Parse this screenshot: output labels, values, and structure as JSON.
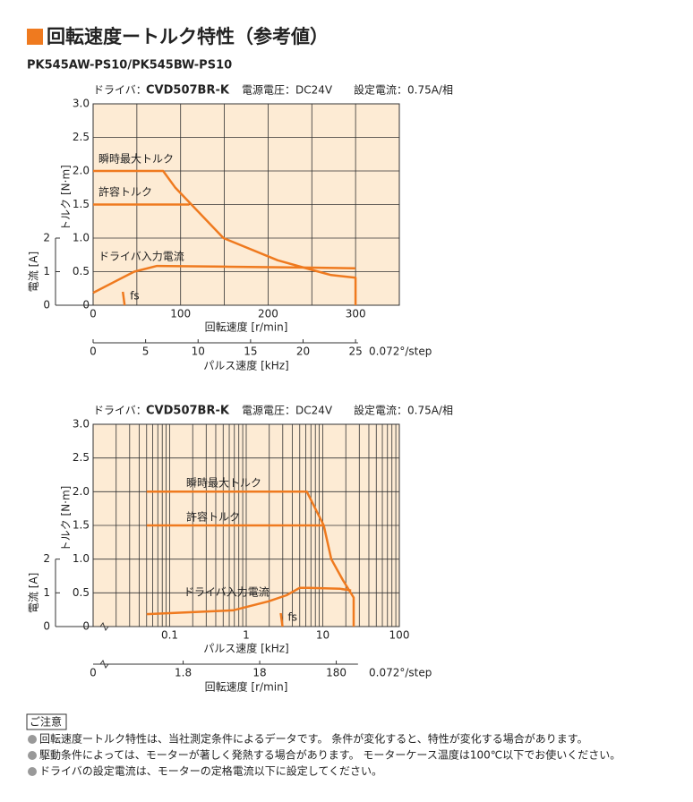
{
  "title": "回転速度ートルク特性（参考値）",
  "subtitle": "PK545AW-PS10/PK545BW-PS10",
  "chart_data": [
    {
      "type": "line",
      "driver_label": "ドライバ：",
      "driver": "CVD507BR-K",
      "voltage": "電源電圧：DC24V",
      "current_setting": "設定電流：0.75A/相",
      "ylabel": "トルク [N·m]",
      "y2label": "電流 [A]",
      "xlabel": "回転速度 [r/min]",
      "x2label": "パルス速度 [kHz]",
      "x2unit": "0.072°/step",
      "xscale": "linear",
      "xlim": [
        0,
        350
      ],
      "xticks": [
        0,
        100,
        200,
        300
      ],
      "xgrid": [
        0,
        50,
        100,
        150,
        200,
        250,
        300,
        350
      ],
      "x2scale": "linear",
      "x2lim": [
        0,
        29.17
      ],
      "x2ticks": [
        0,
        5,
        10,
        15,
        20,
        25
      ],
      "ylim": [
        0,
        3
      ],
      "yticks": [
        0,
        0.5,
        {
          "value": 1,
          "label": "1.0"
        },
        1.5,
        {
          "value": 2,
          "label": "2.0"
        },
        2.5,
        {
          "value": 3,
          "label": "3.0"
        }
      ],
      "y2lim": [
        0,
        6
      ],
      "y2ticks": [
        0,
        1,
        2
      ],
      "grid": true,
      "background": "#fdebd4",
      "series": [
        {
          "name": "瞬時最大トルク",
          "color": "#ef7a1f",
          "x": [
            0,
            80,
            94,
            149,
            211,
            252,
            272,
            300,
            300
          ],
          "values": [
            2.0,
            2.0,
            1.75,
            1.0,
            0.67,
            0.52,
            0.45,
            0.41,
            0
          ]
        },
        {
          "name": "許容トルク",
          "color": "#ef7a1f",
          "x": [
            0,
            110
          ],
          "values": [
            1.5,
            1.5
          ]
        },
        {
          "name": "ドライバ入力電流",
          "color": "#ef7a1f",
          "axis": "y2",
          "x": [
            0,
            47,
            73,
            150,
            250,
            300
          ],
          "values": [
            0.37,
            1.0,
            1.17,
            1.15,
            1.12,
            1.1
          ]
        }
      ],
      "fs": {
        "label": "fs",
        "x": 35
      }
    },
    {
      "type": "line",
      "driver_label": "ドライバ：",
      "driver": "CVD507BR-K",
      "voltage": "電源電圧：DC24V",
      "current_setting": "設定電流：0.75A/相",
      "ylabel": "トルク [N·m]",
      "y2label": "電流 [A]",
      "xlabel": "パルス速度 [kHz]",
      "x2label": "回転速度 [r/min]",
      "x2unit": "0.072°/step",
      "x2origin": "0",
      "xscale": "log",
      "xlim": [
        0.01,
        100
      ],
      "xticks": [
        0.1,
        1,
        10,
        100
      ],
      "xgrid": [
        0.02,
        0.03,
        0.04,
        0.05,
        0.06,
        0.07,
        0.08,
        0.09,
        0.1,
        0.2,
        0.3,
        0.4,
        0.5,
        0.6,
        0.7,
        0.8,
        0.9,
        1,
        2,
        3,
        4,
        5,
        6,
        7,
        8,
        9,
        10,
        20,
        30,
        40,
        50,
        60,
        70,
        80,
        90,
        100
      ],
      "x2scale": "log",
      "x2lim": [
        0.12,
        1200
      ],
      "x2ticks": [
        1.8,
        18,
        180
      ],
      "ylim": [
        0,
        3
      ],
      "yticks": [
        0,
        0.5,
        {
          "value": 1,
          "label": "1.0"
        },
        1.5,
        {
          "value": 2,
          "label": "2.0"
        },
        2.5,
        {
          "value": 3,
          "label": "3.0"
        }
      ],
      "y2lim": [
        0,
        6
      ],
      "y2ticks": [
        0,
        1,
        2
      ],
      "grid": true,
      "background": "#fdebd4",
      "series": [
        {
          "name": "瞬時最大トルク",
          "color": "#ef7a1f",
          "x": [
            0.05,
            6.2,
            10.3,
            12.9,
            18.3,
            25.3,
            25.3
          ],
          "values": [
            2.0,
            2.0,
            1.5,
            1.0,
            0.69,
            0.43,
            0
          ]
        },
        {
          "name": "許容トルク",
          "color": "#ef7a1f",
          "x": [
            0.05,
            10.3
          ],
          "values": [
            1.5,
            1.5
          ]
        },
        {
          "name": "ドライバ入力電流",
          "color": "#ef7a1f",
          "axis": "y2",
          "x": [
            0.05,
            0.67,
            1.96,
            3.36,
            5.0,
            6.5,
            17,
            23.5
          ],
          "values": [
            0.37,
            0.48,
            0.75,
            0.93,
            1.15,
            1.15,
            1.12,
            1.07
          ]
        }
      ],
      "fs": {
        "label": "fs",
        "x": 2.9
      }
    }
  ],
  "notes": {
    "heading": "ご注意",
    "items": [
      "回転速度ートルク特性は、当社測定条件によるデータです。 条件が変化すると、特性が変化する場合があります。",
      "駆動条件によっては、モーターが著しく発熱する場合があります。 モーターケース温度は100℃以下でお使いください。",
      "ドライバの設定電流は、モーターの定格電流以下に設定してください。"
    ]
  }
}
